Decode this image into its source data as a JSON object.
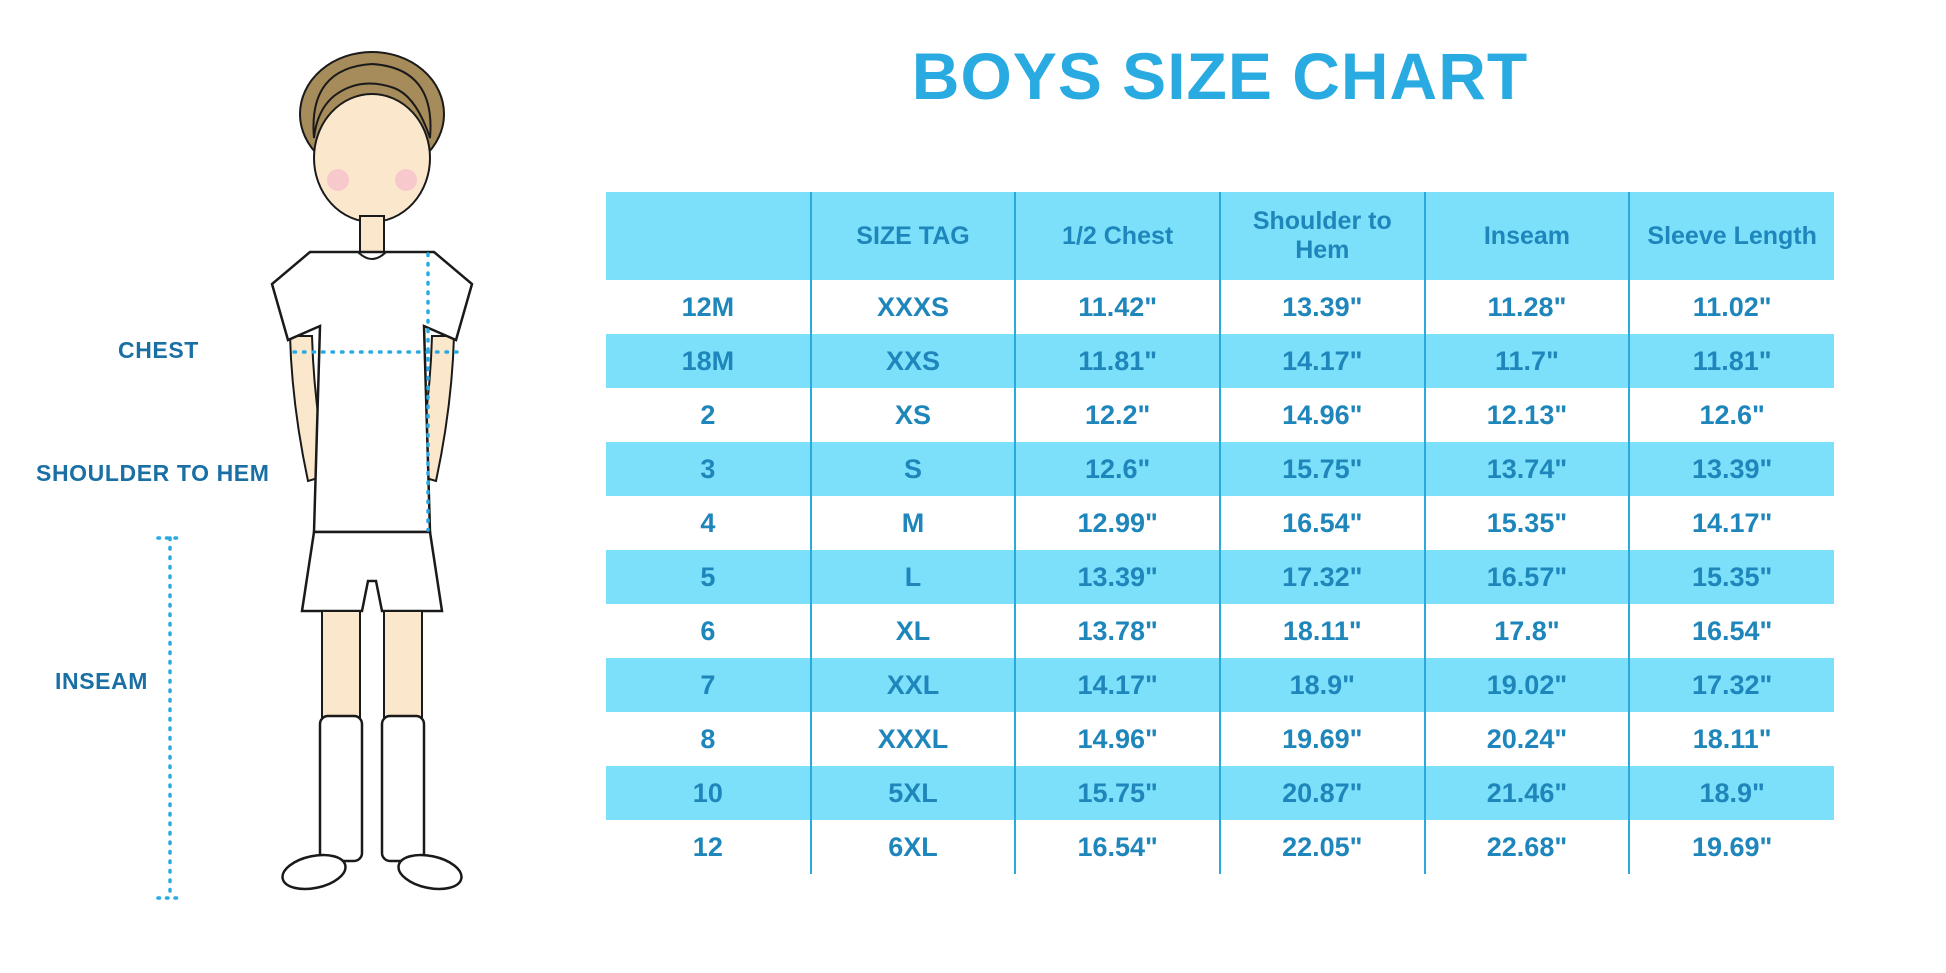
{
  "page": {
    "title": "BOYS SIZE CHART"
  },
  "figure": {
    "chest_label": "CHEST",
    "shoulder_label": "SHOULDER TO HEM",
    "inseam_label": "INSEAM"
  },
  "colors": {
    "accent": "#29ABE2",
    "table_stripe": "#7CE0FB",
    "table_text": "#1E86BB",
    "table_border": "#2AA9DD",
    "label_text": "#1A6FA5"
  },
  "chart_data": {
    "type": "table",
    "title": "BOYS SIZE CHART",
    "columns": [
      "",
      "SIZE TAG",
      "1/2 Chest",
      "Shoulder to Hem",
      "Inseam",
      "Sleeve Length"
    ],
    "rows": [
      [
        "12M",
        "XXXS",
        "11.42\"",
        "13.39\"",
        "11.28\"",
        "11.02\""
      ],
      [
        "18M",
        "XXS",
        "11.81\"",
        "14.17\"",
        "11.7\"",
        "11.81\""
      ],
      [
        "2",
        "XS",
        "12.2\"",
        "14.96\"",
        "12.13\"",
        "12.6\""
      ],
      [
        "3",
        "S",
        "12.6\"",
        "15.75\"",
        "13.74\"",
        "13.39\""
      ],
      [
        "4",
        "M",
        "12.99\"",
        "16.54\"",
        "15.35\"",
        "14.17\""
      ],
      [
        "5",
        "L",
        "13.39\"",
        "17.32\"",
        "16.57\"",
        "15.35\""
      ],
      [
        "6",
        "XL",
        "13.78\"",
        "18.11\"",
        "17.8\"",
        "16.54\""
      ],
      [
        "7",
        "XXL",
        "14.17\"",
        "18.9\"",
        "19.02\"",
        "17.32\""
      ],
      [
        "8",
        "XXXL",
        "14.96\"",
        "19.69\"",
        "20.24\"",
        "18.11\""
      ],
      [
        "10",
        "5XL",
        "15.75\"",
        "20.87\"",
        "21.46\"",
        "18.9\""
      ],
      [
        "12",
        "6XL",
        "16.54\"",
        "22.05\"",
        "22.68\"",
        "19.69\""
      ]
    ]
  }
}
